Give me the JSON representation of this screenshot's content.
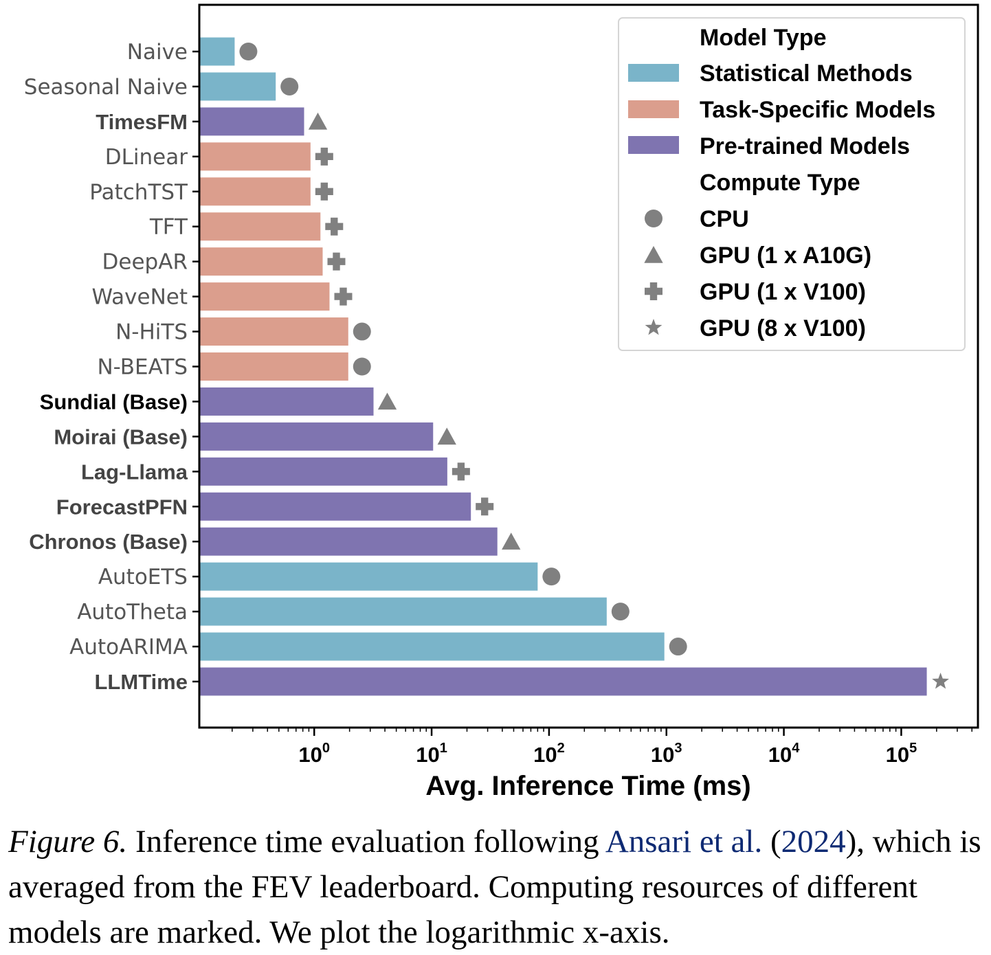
{
  "chart_data": {
    "type": "bar",
    "orientation": "horizontal",
    "xlabel": "Avg. Inference Time (ms)",
    "xscale": "log",
    "xlim": [
      0.105,
      450000
    ],
    "xticks": [
      {
        "value": 1,
        "base": "10",
        "exp": "0"
      },
      {
        "value": 10,
        "base": "10",
        "exp": "1"
      },
      {
        "value": 100,
        "base": "10",
        "exp": "2"
      },
      {
        "value": 1000,
        "base": "10",
        "exp": "3"
      },
      {
        "value": 10000,
        "base": "10",
        "exp": "4"
      },
      {
        "value": 100000,
        "base": "10",
        "exp": "5"
      }
    ],
    "colors": {
      "Statistical Methods": "#7ab4c9",
      "Task-Specific Models": "#db9e8d",
      "Pre-trained Models": "#7f74b0",
      "marker": "#808080"
    },
    "categories": [
      {
        "label": "Naive",
        "value": 0.21,
        "model_type": "Statistical Methods",
        "compute": "CPU",
        "bold": false
      },
      {
        "label": "Seasonal Naive",
        "value": 0.47,
        "model_type": "Statistical Methods",
        "compute": "CPU",
        "bold": false
      },
      {
        "label": "TimesFM",
        "value": 0.82,
        "model_type": "Pre-trained Models",
        "compute": "GPU (1 x A10G)",
        "bold": true
      },
      {
        "label": "DLinear",
        "value": 0.93,
        "model_type": "Task-Specific Models",
        "compute": "GPU (1 x V100)",
        "bold": false
      },
      {
        "label": "PatchTST",
        "value": 0.93,
        "model_type": "Task-Specific Models",
        "compute": "GPU (1 x V100)",
        "bold": false
      },
      {
        "label": "TFT",
        "value": 1.13,
        "model_type": "Task-Specific Models",
        "compute": "GPU (1 x V100)",
        "bold": false
      },
      {
        "label": "DeepAR",
        "value": 1.18,
        "model_type": "Task-Specific Models",
        "compute": "GPU (1 x V100)",
        "bold": false
      },
      {
        "label": "WaveNet",
        "value": 1.35,
        "model_type": "Task-Specific Models",
        "compute": "GPU (1 x V100)",
        "bold": false
      },
      {
        "label": "N-HiTS",
        "value": 1.95,
        "model_type": "Task-Specific Models",
        "compute": "CPU",
        "bold": false
      },
      {
        "label": "N-BEATS",
        "value": 1.95,
        "model_type": "Task-Specific Models",
        "compute": "CPU",
        "bold": false
      },
      {
        "label": "Sundial (Base)",
        "value": 3.2,
        "model_type": "Pre-trained Models",
        "compute": "GPU (1 x A10G)",
        "bold": true
      },
      {
        "label": "Moirai (Base)",
        "value": 10.3,
        "model_type": "Pre-trained Models",
        "compute": "GPU (1 x A10G)",
        "bold": true
      },
      {
        "label": "Lag-Llama",
        "value": 13.6,
        "model_type": "Pre-trained Models",
        "compute": "GPU (1 x V100)",
        "bold": true
      },
      {
        "label": "ForecastPFN",
        "value": 21.6,
        "model_type": "Pre-trained Models",
        "compute": "GPU (1 x V100)",
        "bold": true
      },
      {
        "label": "Chronos (Base)",
        "value": 36.3,
        "model_type": "Pre-trained Models",
        "compute": "GPU (1 x A10G)",
        "bold": true
      },
      {
        "label": "AutoETS",
        "value": 80,
        "model_type": "Statistical Methods",
        "compute": "CPU",
        "bold": false
      },
      {
        "label": "AutoTheta",
        "value": 310,
        "model_type": "Statistical Methods",
        "compute": "CPU",
        "bold": false
      },
      {
        "label": "AutoARIMA",
        "value": 960,
        "model_type": "Statistical Methods",
        "compute": "CPU",
        "bold": false
      },
      {
        "label": "LLMTime",
        "value": 165000,
        "model_type": "Pre-trained Models",
        "compute": "GPU (8 x V100)",
        "bold": true
      }
    ],
    "legend": {
      "location": "top-right",
      "model_type_title": "Model Type",
      "model_types": [
        "Statistical Methods",
        "Task-Specific Models",
        "Pre-trained Models"
      ],
      "compute_type_title": "Compute Type",
      "compute_types": [
        {
          "label": "CPU",
          "marker": "circle"
        },
        {
          "label": "GPU (1 x A10G)",
          "marker": "triangle"
        },
        {
          "label": "GPU (1 x V100)",
          "marker": "plus"
        },
        {
          "label": "GPU (8 x V100)",
          "marker": "star"
        }
      ]
    },
    "grid": false
  },
  "caption": {
    "figure_label": "Figure 6.",
    "text_before_cite": " Inference time evaluation following ",
    "cite_authors": "Ansari et al.",
    "cite_open": " (",
    "cite_year": "2024",
    "cite_close": "),",
    "text_after_cite": " which is averaged from the FEV leaderboard. Computing resources of different models are marked. We plot the logarithmic x-axis."
  }
}
